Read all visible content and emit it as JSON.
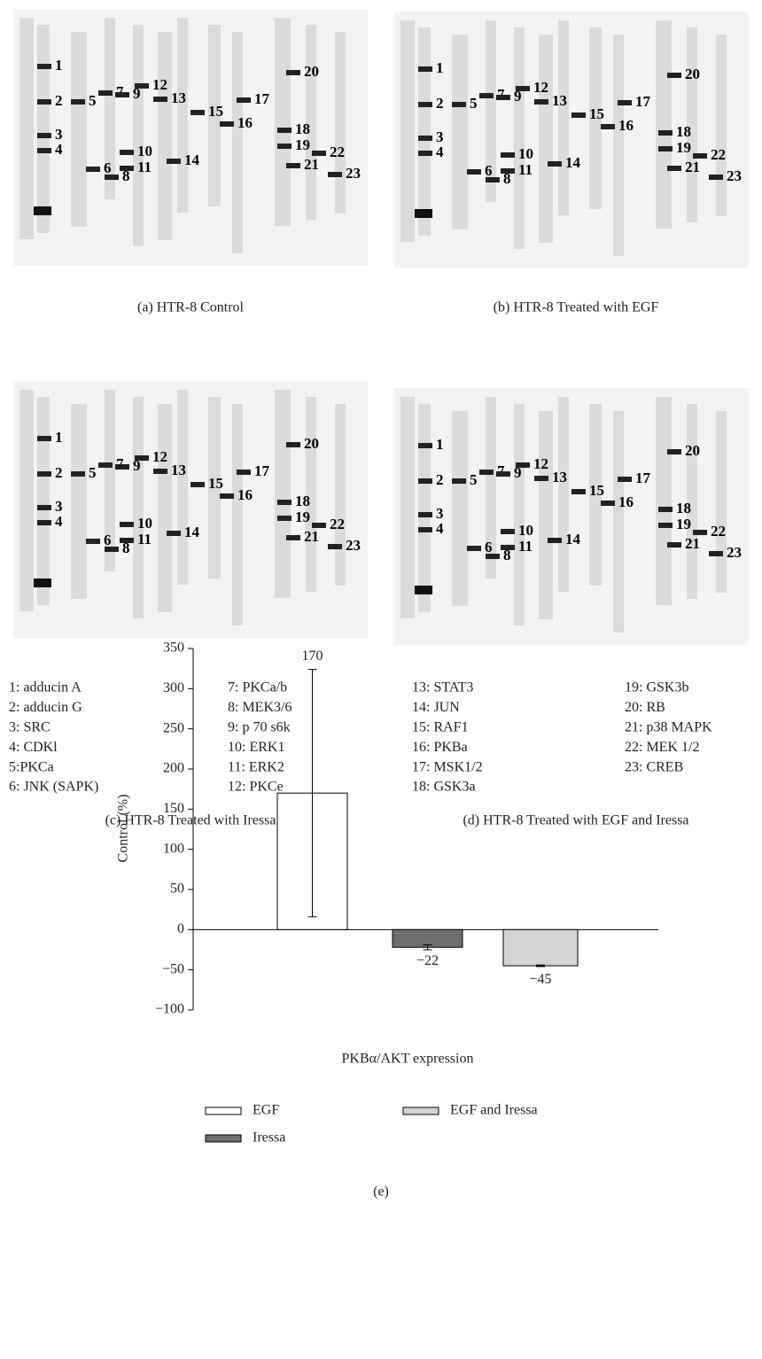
{
  "panels": [
    {
      "caption": "(a)  HTR-8 Control"
    },
    {
      "caption": "(b)  HTR-8 Treated with EGF"
    },
    {
      "caption": "(c)  HTR-8 Treated with Iressa"
    },
    {
      "caption": "(d)  HTR-8 Treated with EGF and Iressa"
    }
  ],
  "band_labels": [
    "1",
    "2",
    "3",
    "4",
    "5",
    "6",
    "7",
    "8",
    "9",
    "10",
    "11",
    "12",
    "13",
    "14",
    "15",
    "16",
    "17",
    "18",
    "19",
    "20",
    "21",
    "22",
    "23"
  ],
  "key": [
    "1: adducin A",
    "2: adducin G",
    "3: SRC",
    "4: CDKl",
    "5:PKCa",
    "6: JNK (SAPK)",
    "7: PKCa/b",
    "8: MEK3/6",
    "9: p 70 s6k",
    "10: ERK1",
    "11: ERK2",
    "12: PKCe",
    "13: STAT3",
    "14: JUN",
    "15: RAF1",
    "16: PKBa",
    "17: MSK1/2",
    "18: GSK3a",
    "19: GSK3b",
    "20: RB",
    "21: p38 MAPK",
    "22: MEK 1/2",
    "23: CREB"
  ],
  "chart_data": {
    "type": "bar",
    "caption": "(e)",
    "xlabel": "PKBα/AKT expression",
    "ylabel": "Control (%)",
    "ylim": [
      -100,
      350
    ],
    "yticks": [
      {
        "value": -100,
        "label": "−100"
      },
      {
        "value": -50,
        "label": "−50"
      },
      0,
      50,
      100,
      150,
      200,
      250,
      300,
      350
    ],
    "series": [
      {
        "name": "EGF",
        "color": "#ffffff",
        "values": [
          170
        ],
        "errors": [
          154
        ]
      },
      {
        "name": "Iressa",
        "color": "#6e6e6e",
        "values": [
          -22
        ],
        "errors": [
          3
        ],
        "value_labels": [
          "−22"
        ]
      },
      {
        "name": "EGF and Iressa",
        "color": "#d4d4d4",
        "values": [
          -45
        ],
        "errors": [
          1
        ],
        "value_labels": [
          "−45"
        ]
      }
    ]
  }
}
